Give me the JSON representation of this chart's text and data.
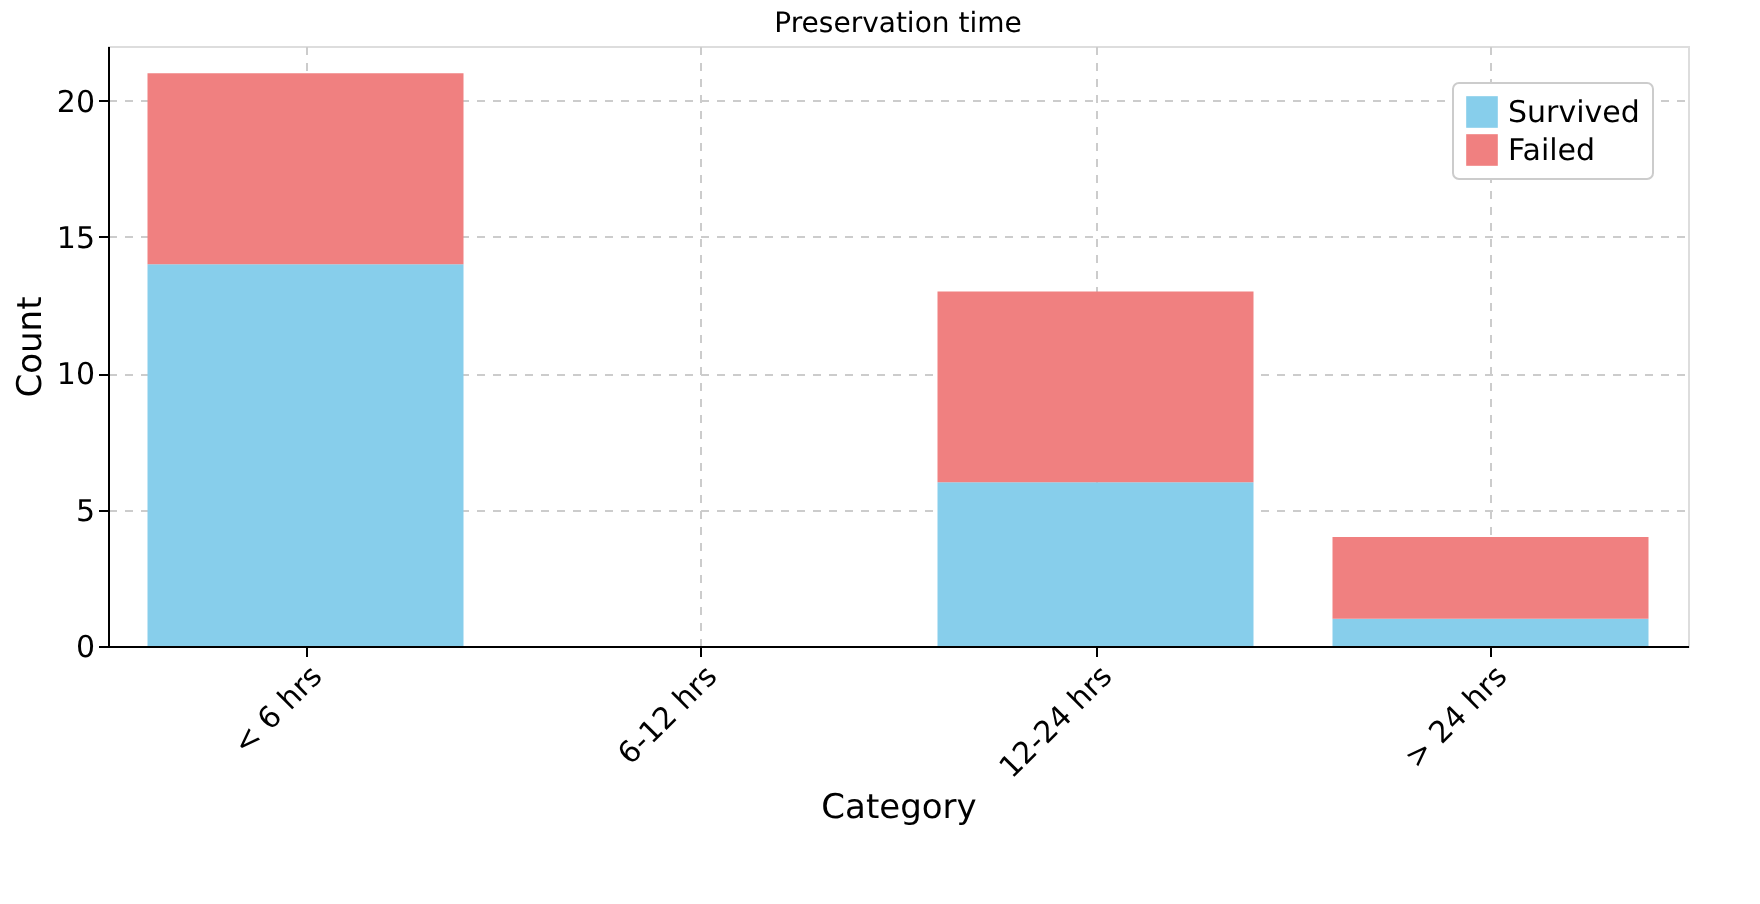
{
  "chart_data": {
    "type": "bar",
    "title": "Preservation time",
    "xlabel": "Category",
    "ylabel": "Count",
    "categories": [
      "< 6 hrs",
      "6-12 hrs",
      "12-24 hrs",
      "> 24 hrs"
    ],
    "series": [
      {
        "name": "Survived",
        "color": "#87ceeb",
        "values": [
          14,
          0,
          6,
          1
        ]
      },
      {
        "name": "Failed",
        "color": "#f08080",
        "values": [
          7,
          0,
          7,
          3
        ]
      }
    ],
    "stacked": true,
    "ylim": [
      0,
      22
    ],
    "yticks": [
      0,
      5,
      10,
      15,
      20
    ],
    "grid": true,
    "legend": "top right"
  }
}
